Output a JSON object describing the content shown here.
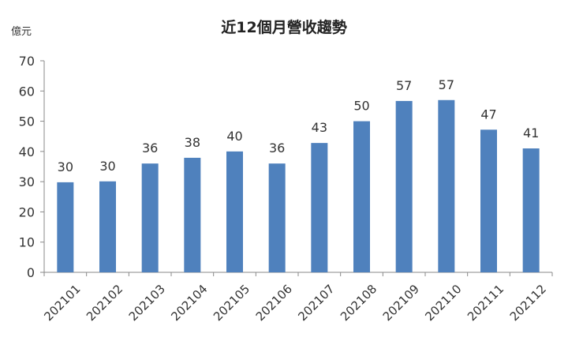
{
  "chart_data": {
    "type": "bar",
    "title": "近12個月營收趨勢",
    "unit_label": "億元",
    "categories": [
      "202101",
      "202102",
      "202103",
      "202104",
      "202105",
      "202106",
      "202107",
      "202108",
      "202109",
      "202110",
      "202111",
      "202112"
    ],
    "values": [
      29.8,
      30.1,
      36,
      37.9,
      40,
      36,
      42.8,
      50,
      56.7,
      57,
      47.2,
      41
    ],
    "data_labels": [
      "30",
      "30",
      "36",
      "38",
      "40",
      "36",
      "43",
      "50",
      "57",
      "57",
      "47",
      "41"
    ],
    "ylim": [
      0,
      70
    ],
    "yticks": [
      0,
      10,
      20,
      30,
      40,
      50,
      60,
      70
    ],
    "bar_color": "#4f81bd",
    "grid": false,
    "legend": "none"
  }
}
